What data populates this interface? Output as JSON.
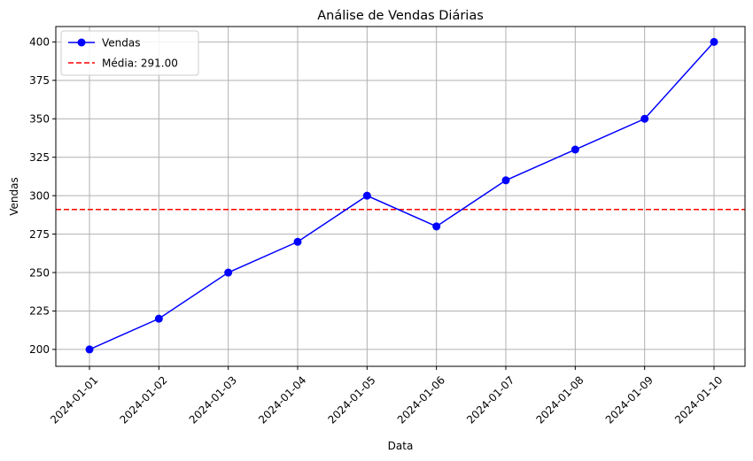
{
  "chart_data": {
    "type": "line",
    "title": "Análise de Vendas Diárias",
    "xlabel": "Data",
    "ylabel": "Vendas",
    "x": [
      "2024-01-01",
      "2024-01-02",
      "2024-01-03",
      "2024-01-04",
      "2024-01-05",
      "2024-01-06",
      "2024-01-07",
      "2024-01-08",
      "2024-01-09",
      "2024-01-10"
    ],
    "series": [
      {
        "name": "Vendas",
        "values": [
          200,
          220,
          250,
          270,
          300,
          280,
          310,
          330,
          350,
          400
        ],
        "color": "#0000ff",
        "marker": "circle",
        "line_style": "solid"
      }
    ],
    "reference_lines": [
      {
        "name": "Média: 291.00",
        "value": 291,
        "color": "#ff0000",
        "line_style": "dashed",
        "orientation": "horizontal"
      }
    ],
    "ylim": [
      189,
      410
    ],
    "yticks": [
      200,
      225,
      250,
      275,
      300,
      325,
      350,
      375,
      400
    ],
    "x_tick_rotation": 45,
    "grid": true,
    "legend_position": "upper-left"
  }
}
